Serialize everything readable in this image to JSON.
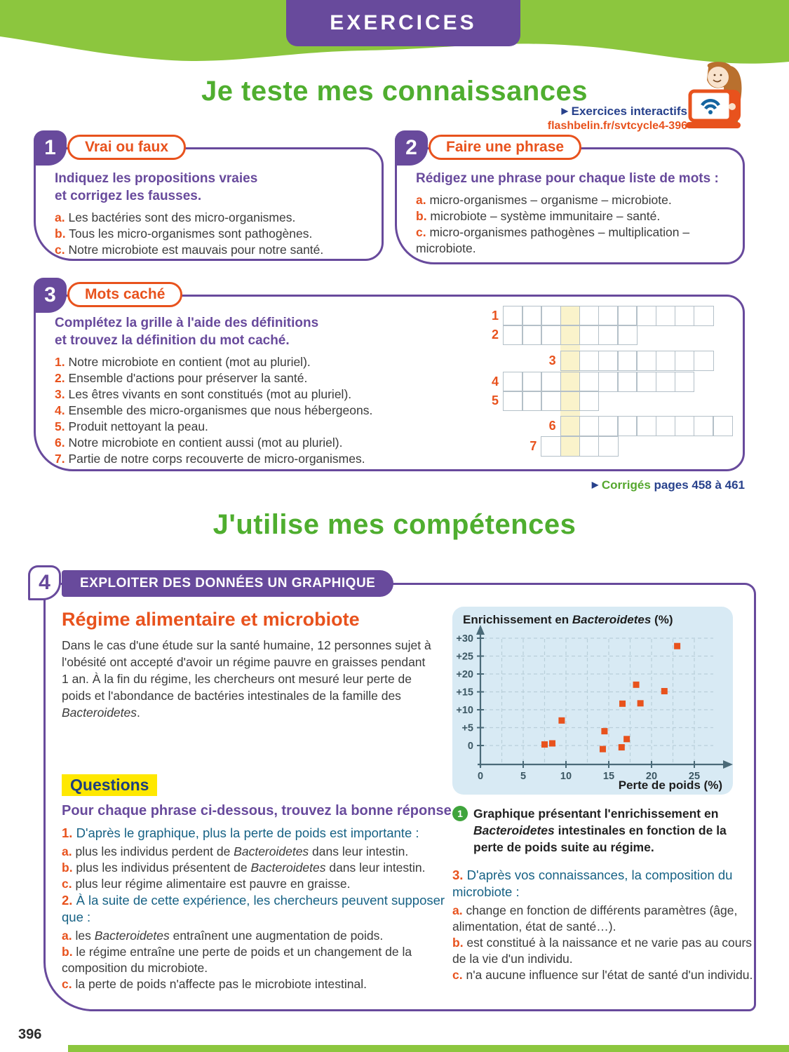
{
  "colors": {
    "green": "#8cc63e",
    "green_title": "#4fae2f",
    "purple": "#684a9c",
    "orange": "#e8521d",
    "blue": "#176285",
    "navy": "#27418c",
    "chart_bg": "#d8eaf4",
    "highlight_yellow": "#ffe800",
    "cell_yellow": "#faf3cb",
    "corriges_green": "#55a72e",
    "point_color": "#e8521d"
  },
  "header": {
    "banner": "EXERCICES",
    "section1_title": "Je teste mes connaissances",
    "section2_title": "J'utilise mes compétences",
    "interactive_label": "Exercices interactifs",
    "interactive_url": "flashbelin.fr/svtcycle4-396"
  },
  "ex1": {
    "num": "1",
    "title": "Vrai ou faux",
    "instruction_lines": [
      "Indiquez les propositions vraies",
      "et corrigez les fausses."
    ],
    "items": [
      {
        "key": "a.",
        "text": "Les bactéries sont des micro-organismes."
      },
      {
        "key": "b.",
        "text": "Tous les micro-organismes sont pathogènes."
      },
      {
        "key": "c.",
        "text": "Notre microbiote est mauvais pour notre santé."
      }
    ]
  },
  "ex2": {
    "num": "2",
    "title": "Faire une phrase",
    "instruction_lines": [
      "Rédigez une phrase pour chaque liste de mots :"
    ],
    "items": [
      {
        "key": "a.",
        "text": "micro-organismes – organisme – microbiote."
      },
      {
        "key": "b.",
        "text": "microbiote – système immunitaire – santé."
      },
      {
        "key": "c.",
        "text": "micro-organismes pathogènes – multiplication – microbiote."
      }
    ]
  },
  "ex3": {
    "num": "3",
    "title": "Mots caché",
    "instruction_lines": [
      "Complétez la grille à l'aide des définitions",
      "et trouvez la définition du mot caché."
    ],
    "definitions": [
      {
        "key": "1.",
        "text": "Notre microbiote en contient (mot au pluriel)."
      },
      {
        "key": "2.",
        "text": "Ensemble d'actions pour préserver la santé."
      },
      {
        "key": "3.",
        "text": "Les êtres vivants en sont constitués (mot au pluriel)."
      },
      {
        "key": "4.",
        "text": "Ensemble des micro-organismes que nous hébergeons."
      },
      {
        "key": "5.",
        "text": "Produit nettoyant la peau."
      },
      {
        "key": "6.",
        "text": "Notre microbiote en contient aussi (mot au pluriel)."
      },
      {
        "key": "7.",
        "text": "Partie de notre corps recouverte de micro-organismes."
      }
    ],
    "grid": {
      "highlight_col": 3,
      "rows": [
        {
          "num": "1",
          "start": 0,
          "len": 11
        },
        {
          "num": "2",
          "start": 0,
          "len": 7
        },
        {
          "num": "3",
          "start": 3,
          "len": 8
        },
        {
          "num": "4",
          "start": 0,
          "len": 10
        },
        {
          "num": "5",
          "start": 0,
          "len": 5
        },
        {
          "num": "6",
          "start": 3,
          "len": 9
        },
        {
          "num": "7",
          "start": 2,
          "len": 4
        }
      ]
    }
  },
  "corriges": {
    "label": "Corrigés",
    "pages": "pages 458 à 461"
  },
  "ex4": {
    "num": "4",
    "banner": "EXPLOITER DES DONNÉES UN GRAPHIQUE",
    "heading": "Régime alimentaire et microbiote",
    "intro": "Dans le cas d'une étude sur la santé humaine, 12 personnes sujet à l'obésité ont accepté d'avoir un régime pauvre en graisses pendant 1 an. À la fin du régime, les chercheurs ont mesuré leur perte de poids et l'abondance de bactéries intestinales de la famille des Bacteroidetes.",
    "questions_label": "Questions",
    "instruction": "Pour chaque phrase ci-dessous, trouvez la bonne réponse.",
    "caption": {
      "num": "1",
      "text": "Graphique présentant l'enrichissement en Bacteroidetes intestinales en fonction de la perte de poids suite au régime."
    },
    "questions": [
      {
        "key": "1.",
        "stem": "D'après le graphique, plus la perte de poids est importante :",
        "options": [
          {
            "key": "a.",
            "text": "plus les individus perdent de Bacteroidetes dans leur intestin."
          },
          {
            "key": "b.",
            "text": "plus les individus présentent de Bacteroidetes dans leur intestin."
          },
          {
            "key": "c.",
            "text": "plus leur régime alimentaire est pauvre en graisse."
          }
        ]
      },
      {
        "key": "2.",
        "stem": "À la suite de cette expérience, les chercheurs peuvent supposer que :",
        "options": [
          {
            "key": "a.",
            "text": "les Bacteroidetes entraînent une augmentation de poids."
          },
          {
            "key": "b.",
            "text": "le régime entraîne une perte de poids et un changement de la composition du microbiote."
          },
          {
            "key": "c.",
            "text": "la perte de poids n'affecte pas le microbiote intestinal."
          }
        ]
      },
      {
        "key": "3.",
        "stem": "D'après vos connaissances, la composition du microbiote :",
        "options": [
          {
            "key": "a.",
            "text": "change en fonction de différents paramètres (âge, alimentation, état de santé…)."
          },
          {
            "key": "b.",
            "text": "est constitué à la naissance et ne varie pas au cours de la vie d'un individu."
          },
          {
            "key": "c.",
            "text": "n'a aucune influence sur l'état de santé d'un individu."
          }
        ]
      }
    ]
  },
  "chart_data": {
    "type": "scatter",
    "title": "Enrichissement en Bacteroidetes (%)",
    "xlabel": "Perte de poids (%)",
    "xlim": [
      0,
      26.5
    ],
    "ylim": [
      -5.3,
      32
    ],
    "x_ticks": [
      0,
      5,
      10,
      15,
      20,
      25
    ],
    "y_ticks": [
      {
        "v": 30,
        "label": "+30"
      },
      {
        "v": 25,
        "label": "+25"
      },
      {
        "v": 20,
        "label": "+20"
      },
      {
        "v": 15,
        "label": "+15"
      },
      {
        "v": 10,
        "label": "+10"
      },
      {
        "v": 5,
        "label": "+5"
      },
      {
        "v": 0,
        "label": "0"
      }
    ],
    "grid": {
      "x_step": 2.5,
      "y_step": 5,
      "style": "dashed"
    },
    "points": [
      [
        7.5,
        0.3
      ],
      [
        8.4,
        0.6
      ],
      [
        9.5,
        7.0
      ],
      [
        14.3,
        -1.0
      ],
      [
        14.5,
        4.0
      ],
      [
        16.5,
        -0.5
      ],
      [
        16.6,
        11.7
      ],
      [
        17.1,
        1.8
      ],
      [
        18.2,
        17.0
      ],
      [
        18.7,
        11.8
      ],
      [
        21.5,
        15.2
      ],
      [
        23.0,
        27.8
      ]
    ],
    "point_color": "#e8521d"
  },
  "footer": {
    "page_number": "396"
  }
}
